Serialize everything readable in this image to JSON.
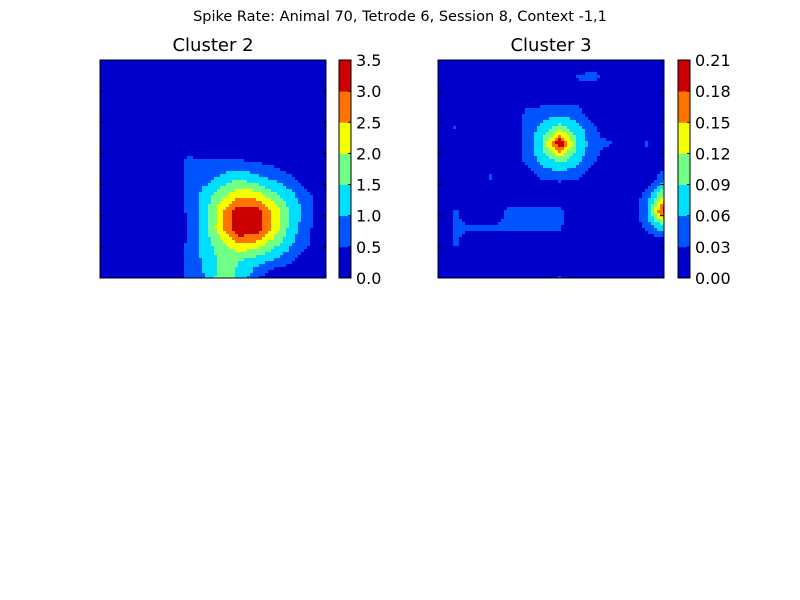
{
  "figure": {
    "suptitle": "Spike Rate: Animal 70, Tetrode 6, Session 8, Context -1,1"
  },
  "chart_data": [
    {
      "type": "heatmap",
      "style": "filled-contour",
      "title": "Cluster 2",
      "colormap": "jet",
      "colorbar": {
        "levels": [
          0.0,
          0.5,
          1.0,
          1.5,
          2.0,
          2.5,
          3.0,
          3.5
        ],
        "tick_labels": [
          "0.0",
          "0.5",
          "1.0",
          "1.5",
          "2.0",
          "2.5",
          "3.0",
          "3.5"
        ],
        "colors": [
          "#0000cc",
          "#0055ff",
          "#00dfff",
          "#72ff86",
          "#f4ff00",
          "#ff7400",
          "#cc0000"
        ]
      },
      "grid_shape": [
        14,
        14
      ],
      "grid": [
        [
          0,
          0,
          0,
          0,
          0,
          0,
          0,
          0,
          0,
          0,
          0,
          0,
          0,
          0
        ],
        [
          0,
          0,
          0,
          0,
          0,
          0,
          0,
          0,
          0,
          0,
          0,
          0,
          0,
          0
        ],
        [
          0,
          0,
          0,
          0,
          0,
          0,
          0,
          0,
          0,
          0,
          0,
          0,
          0,
          0
        ],
        [
          0,
          0,
          0,
          0,
          0,
          0,
          0,
          0,
          0,
          0,
          0,
          0,
          0,
          0
        ],
        [
          0,
          0,
          0,
          0,
          0,
          0,
          0,
          0,
          0,
          0,
          0,
          0,
          0,
          0
        ],
        [
          0,
          0,
          0,
          0,
          0,
          0,
          0,
          0,
          0,
          0,
          0,
          0,
          0,
          0
        ],
        [
          0,
          0,
          0,
          0,
          0,
          0.62,
          0.6,
          0.55,
          0.52,
          0.45,
          0.3,
          0,
          0,
          0
        ],
        [
          0,
          0,
          0,
          0,
          0,
          0.6,
          0.75,
          1.1,
          1.4,
          1.1,
          0.85,
          0.6,
          0,
          0
        ],
        [
          0,
          0,
          0,
          0,
          0,
          0.55,
          1.2,
          1.8,
          2.3,
          2.2,
          1.6,
          1.1,
          0.6,
          0
        ],
        [
          0,
          0,
          0,
          0,
          0,
          0.55,
          1.2,
          2.4,
          3.3,
          3.2,
          2.4,
          1.4,
          0.75,
          0
        ],
        [
          0,
          0,
          0,
          0,
          0,
          0.5,
          1.3,
          2.4,
          3.6,
          3.4,
          2.4,
          1.3,
          0.6,
          0
        ],
        [
          0,
          0,
          0,
          0,
          0,
          0.55,
          1.2,
          1.9,
          2.4,
          2.3,
          1.7,
          1.05,
          0.55,
          0
        ],
        [
          0,
          0,
          0,
          0,
          0,
          0.55,
          1.1,
          1.6,
          1.5,
          1.2,
          0.9,
          0.6,
          0,
          0
        ],
        [
          0,
          0,
          0,
          0,
          0,
          0.55,
          1.0,
          1.8,
          1.4,
          0.6,
          0,
          0,
          0,
          0
        ]
      ]
    },
    {
      "type": "heatmap",
      "style": "filled-contour",
      "title": "Cluster 3",
      "colormap": "jet",
      "colorbar": {
        "levels": [
          0.0,
          0.03,
          0.06,
          0.09,
          0.12,
          0.15,
          0.18,
          0.21
        ],
        "tick_labels": [
          "0.00",
          "0.03",
          "0.06",
          "0.09",
          "0.12",
          "0.15",
          "0.18",
          "0.21"
        ],
        "colors": [
          "#0000cc",
          "#0055ff",
          "#00dfff",
          "#72ff86",
          "#f4ff00",
          "#ff7400",
          "#cc0000"
        ]
      },
      "grid_shape": [
        14,
        14
      ],
      "grid": [
        [
          0,
          0,
          0,
          0,
          0,
          0,
          0,
          0,
          0,
          0,
          0,
          0,
          0,
          0
        ],
        [
          0,
          0,
          0,
          0,
          0,
          0,
          0,
          0,
          0.035,
          0.04,
          0,
          0,
          0,
          0
        ],
        [
          0,
          0,
          0,
          0,
          0,
          0,
          0,
          0,
          0,
          0,
          0,
          0,
          0,
          0
        ],
        [
          0,
          0,
          0,
          0,
          0,
          0.032,
          0.04,
          0.04,
          0.04,
          0,
          0,
          0,
          0,
          0
        ],
        [
          0,
          0.035,
          0,
          0,
          0,
          0.035,
          0.07,
          0.1,
          0.07,
          0.035,
          0,
          0,
          0,
          0
        ],
        [
          0,
          0,
          0,
          0,
          0,
          0.035,
          0.09,
          0.21,
          0.09,
          0.04,
          0.032,
          0,
          0.035,
          0
        ],
        [
          0,
          0,
          0,
          0,
          0,
          0.035,
          0.07,
          0.1,
          0.07,
          0.035,
          0,
          0,
          0,
          0
        ],
        [
          0,
          0,
          0,
          0.035,
          0,
          0,
          0.035,
          0.04,
          0.035,
          0,
          0,
          0,
          0,
          0.05
        ],
        [
          0,
          0,
          0,
          0,
          0,
          0,
          0,
          0,
          0,
          0,
          0,
          0,
          0.04,
          0.12
        ],
        [
          0,
          0.035,
          0,
          0,
          0.035,
          0.04,
          0.04,
          0.04,
          0,
          0,
          0,
          0,
          0.06,
          0.2
        ],
        [
          0,
          0.035,
          0.035,
          0.035,
          0.035,
          0.04,
          0.035,
          0.035,
          0,
          0,
          0,
          0,
          0.04,
          0.08
        ],
        [
          0,
          0.035,
          0,
          0,
          0,
          0,
          0,
          0,
          0,
          0,
          0,
          0,
          0,
          0
        ],
        [
          0,
          0,
          0,
          0,
          0,
          0,
          0,
          0,
          0,
          0,
          0,
          0,
          0,
          0
        ],
        [
          0,
          0,
          0,
          0,
          0,
          0,
          0,
          0.035,
          0,
          0,
          0,
          0,
          0,
          0
        ]
      ]
    }
  ]
}
